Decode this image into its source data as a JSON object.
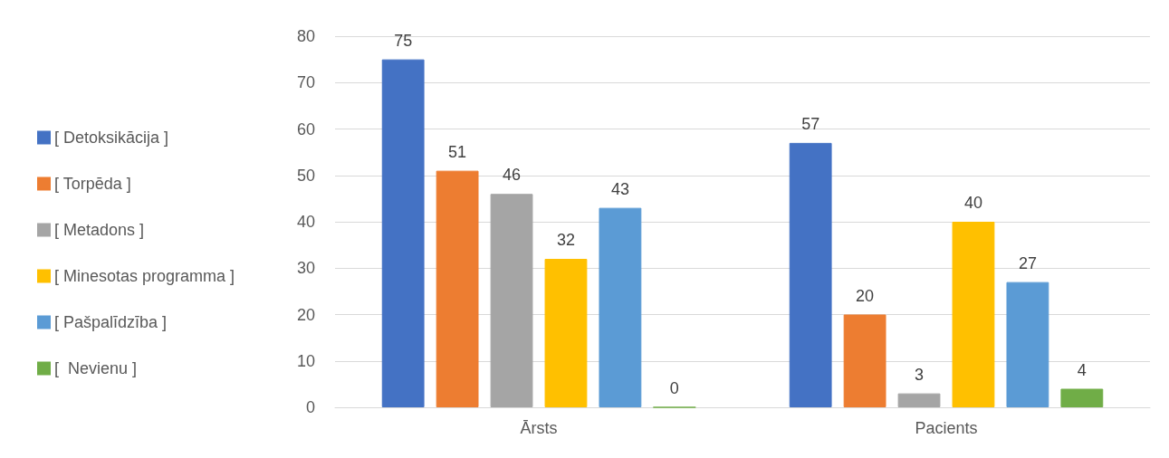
{
  "chart_data": {
    "type": "bar",
    "categories": [
      "Ārsts",
      "Pacients"
    ],
    "series": [
      {
        "name": "[ Detoksikācija ]",
        "color": "#4472c4",
        "values": [
          75,
          57
        ]
      },
      {
        "name": "[ Torpēda ]",
        "color": "#ed7d31",
        "values": [
          51,
          20
        ]
      },
      {
        "name": "[ Metadons ]",
        "color": "#a5a5a5",
        "values": [
          46,
          3
        ]
      },
      {
        "name": "[ Minesotas programma ]",
        "color": "#ffc000",
        "values": [
          32,
          40
        ]
      },
      {
        "name": "[ Pašpalīdzība ]",
        "color": "#5b9bd5",
        "values": [
          43,
          27
        ]
      },
      {
        "name": "[  Nevienu ]",
        "color": "#70ad47",
        "values": [
          0,
          4
        ]
      }
    ],
    "ylim": [
      0,
      80
    ],
    "yticks": [
      0,
      10,
      20,
      30,
      40,
      50,
      60,
      70,
      80
    ],
    "grid": "y",
    "legend": "left",
    "data_labels": true
  }
}
